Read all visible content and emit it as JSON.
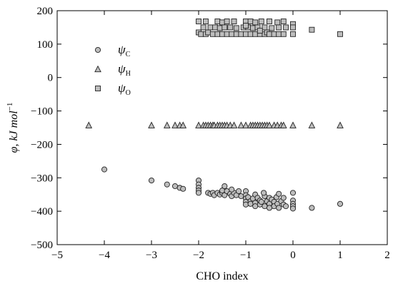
{
  "chart_data": {
    "type": "scatter",
    "title": "",
    "xlabel": "CHO index",
    "ylabel": "φ, kJ mol",
    "ylabel_superscript": "−1",
    "xlim": [
      -5,
      2
    ],
    "ylim": [
      -500,
      200
    ],
    "xticks": [
      -5,
      -4,
      -3,
      -2,
      -1,
      0,
      1,
      2
    ],
    "yticks": [
      -500,
      -400,
      -300,
      -200,
      -100,
      0,
      100,
      200
    ],
    "xtick_labels": [
      "−5",
      "−4",
      "−3",
      "−2",
      "−1",
      "0",
      "1",
      "2"
    ],
    "ytick_labels": [
      "−500",
      "−400",
      "−300",
      "−200",
      "−100",
      "0",
      "100",
      "200"
    ],
    "legend_position": "upper-left",
    "series": [
      {
        "name": "ψC",
        "name_main": "ψ",
        "name_sub": "C",
        "marker": "circle",
        "color": "#bdbdbd",
        "points": [
          [
            -4.0,
            -275
          ],
          [
            -3.0,
            -308
          ],
          [
            -2.67,
            -320
          ],
          [
            -2.5,
            -325
          ],
          [
            -2.4,
            -330
          ],
          [
            -2.33,
            -333
          ],
          [
            -2.0,
            -308
          ],
          [
            -2.0,
            -320
          ],
          [
            -2.0,
            -330
          ],
          [
            -2.0,
            -338
          ],
          [
            -2.0,
            -345
          ],
          [
            -1.8,
            -345
          ],
          [
            -1.75,
            -348
          ],
          [
            -1.7,
            -345
          ],
          [
            -1.67,
            -352
          ],
          [
            -1.6,
            -345
          ],
          [
            -1.55,
            -350
          ],
          [
            -1.5,
            -345
          ],
          [
            -1.5,
            -338
          ],
          [
            -1.45,
            -352
          ],
          [
            -1.4,
            -340
          ],
          [
            -1.33,
            -348
          ],
          [
            -1.3,
            -355
          ],
          [
            -1.25,
            -345
          ],
          [
            -1.2,
            -352
          ],
          [
            -1.15,
            -340
          ],
          [
            -1.1,
            -355
          ],
          [
            -1.0,
            -340
          ],
          [
            -1.0,
            -352
          ],
          [
            -1.0,
            -362
          ],
          [
            -1.0,
            -372
          ],
          [
            -1.0,
            -380
          ],
          [
            -0.95,
            -358
          ],
          [
            -0.9,
            -370
          ],
          [
            -0.9,
            -378
          ],
          [
            -0.85,
            -362
          ],
          [
            -0.8,
            -350
          ],
          [
            -0.8,
            -375
          ],
          [
            -0.8,
            -385
          ],
          [
            -0.75,
            -360
          ],
          [
            -0.7,
            -368
          ],
          [
            -0.7,
            -380
          ],
          [
            -0.67,
            -372
          ],
          [
            -0.6,
            -355
          ],
          [
            -0.6,
            -385
          ],
          [
            -0.55,
            -370
          ],
          [
            -0.5,
            -360
          ],
          [
            -0.5,
            -378
          ],
          [
            -0.5,
            -390
          ],
          [
            -0.45,
            -365
          ],
          [
            -0.4,
            -372
          ],
          [
            -0.4,
            -385
          ],
          [
            -0.35,
            -358
          ],
          [
            -0.33,
            -378
          ],
          [
            -0.3,
            -390
          ],
          [
            -0.25,
            -370
          ],
          [
            -0.2,
            -380
          ],
          [
            -0.2,
            -360
          ],
          [
            -0.15,
            -385
          ],
          [
            -1.45,
            -325
          ],
          [
            -1.3,
            -335
          ],
          [
            -0.62,
            -345
          ],
          [
            -0.3,
            -348
          ],
          [
            0.0,
            -345
          ],
          [
            0.0,
            -368
          ],
          [
            0.0,
            -378
          ],
          [
            0.0,
            -385
          ],
          [
            0.0,
            -392
          ],
          [
            0.4,
            -390
          ],
          [
            1.0,
            -378
          ]
        ]
      },
      {
        "name": "ψH",
        "name_main": "ψ",
        "name_sub": "H",
        "marker": "triangle",
        "color": "#bdbdbd",
        "points": [
          [
            -4.33,
            -143
          ],
          [
            -3.0,
            -143
          ],
          [
            -2.67,
            -143
          ],
          [
            -2.5,
            -143
          ],
          [
            -2.4,
            -143
          ],
          [
            -2.33,
            -143
          ],
          [
            -2.0,
            -143
          ],
          [
            -1.9,
            -143
          ],
          [
            -1.85,
            -143
          ],
          [
            -1.8,
            -143
          ],
          [
            -1.75,
            -143
          ],
          [
            -1.7,
            -143
          ],
          [
            -1.67,
            -143
          ],
          [
            -1.6,
            -143
          ],
          [
            -1.55,
            -143
          ],
          [
            -1.5,
            -143
          ],
          [
            -1.45,
            -143
          ],
          [
            -1.4,
            -143
          ],
          [
            -1.33,
            -143
          ],
          [
            -1.25,
            -143
          ],
          [
            -1.1,
            -143
          ],
          [
            -1.0,
            -143
          ],
          [
            -0.9,
            -143
          ],
          [
            -0.85,
            -143
          ],
          [
            -0.8,
            -143
          ],
          [
            -0.75,
            -143
          ],
          [
            -0.7,
            -143
          ],
          [
            -0.65,
            -143
          ],
          [
            -0.6,
            -143
          ],
          [
            -0.55,
            -143
          ],
          [
            -0.5,
            -143
          ],
          [
            -0.4,
            -143
          ],
          [
            -0.33,
            -143
          ],
          [
            -0.25,
            -143
          ],
          [
            -0.2,
            -143
          ],
          [
            0.0,
            -143
          ],
          [
            0.4,
            -143
          ],
          [
            1.0,
            -143
          ]
        ]
      },
      {
        "name": "ψO",
        "name_main": "ψ",
        "name_sub": "O",
        "marker": "square",
        "color": "#bdbdbd",
        "points": [
          [
            -2.0,
            168
          ],
          [
            -1.85,
            168
          ],
          [
            -1.6,
            168
          ],
          [
            -1.5,
            165
          ],
          [
            -1.4,
            168
          ],
          [
            -1.25,
            168
          ],
          [
            -1.0,
            168
          ],
          [
            -0.9,
            168
          ],
          [
            -0.8,
            165
          ],
          [
            -0.67,
            168
          ],
          [
            -0.5,
            168
          ],
          [
            -0.33,
            165
          ],
          [
            -0.2,
            168
          ],
          [
            -1.9,
            150
          ],
          [
            -1.75,
            150
          ],
          [
            -1.65,
            150
          ],
          [
            -1.55,
            148
          ],
          [
            -1.45,
            150
          ],
          [
            -1.33,
            150
          ],
          [
            -1.2,
            148
          ],
          [
            -1.05,
            150
          ],
          [
            -0.95,
            150
          ],
          [
            -0.85,
            148
          ],
          [
            -0.75,
            150
          ],
          [
            -0.6,
            150
          ],
          [
            -0.45,
            148
          ],
          [
            -0.3,
            150
          ],
          [
            -0.15,
            150
          ],
          [
            -2.0,
            135
          ],
          [
            -1.95,
            130
          ],
          [
            -1.85,
            130
          ],
          [
            -1.8,
            135
          ],
          [
            -1.7,
            130
          ],
          [
            -1.6,
            130
          ],
          [
            -1.5,
            130
          ],
          [
            -1.4,
            130
          ],
          [
            -1.3,
            130
          ],
          [
            -1.2,
            130
          ],
          [
            -1.1,
            130
          ],
          [
            -1.0,
            130
          ],
          [
            -0.9,
            130
          ],
          [
            -0.8,
            130
          ],
          [
            -0.7,
            130
          ],
          [
            -0.6,
            130
          ],
          [
            -0.55,
            135
          ],
          [
            -0.5,
            130
          ],
          [
            -0.4,
            130
          ],
          [
            -0.3,
            130
          ],
          [
            -0.2,
            130
          ],
          [
            -1.0,
            155
          ],
          [
            -0.7,
            140
          ],
          [
            0.0,
            160
          ],
          [
            0.0,
            150
          ],
          [
            0.0,
            130
          ],
          [
            0.4,
            143
          ],
          [
            1.0,
            130
          ]
        ]
      }
    ]
  }
}
